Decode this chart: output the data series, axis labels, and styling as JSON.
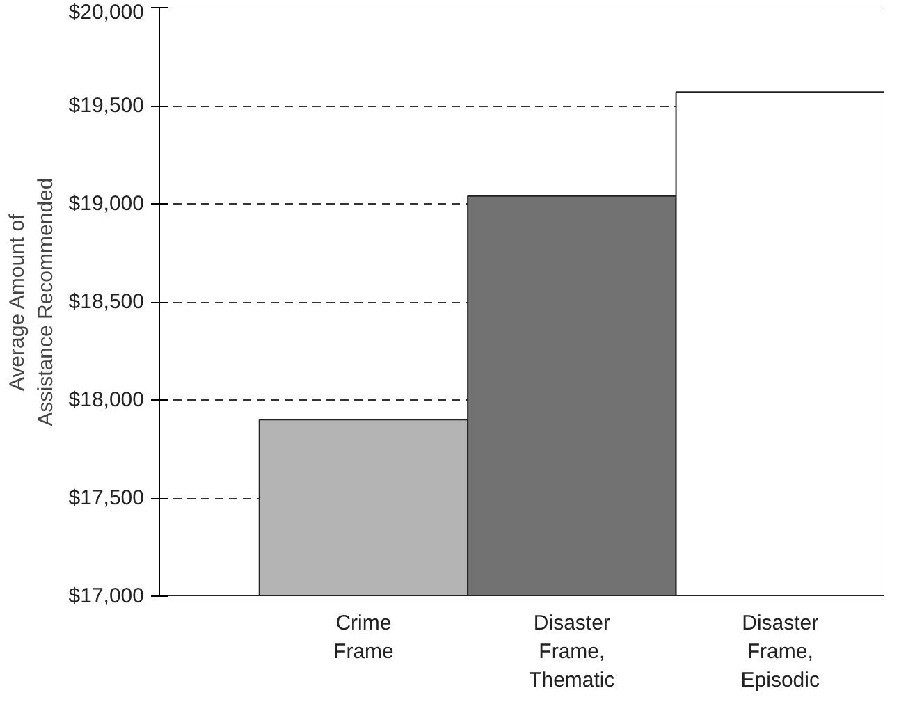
{
  "chart_data": {
    "type": "bar",
    "ylabel": "Average Amount of\nAssistance Recommended",
    "categories": [
      "Crime Frame",
      "Disaster Frame, Thematic",
      "Disaster Frame, Episodic"
    ],
    "values": [
      17900,
      19040,
      19570
    ],
    "colors": [
      "#b4b4b4",
      "#727272",
      "#ffffff"
    ],
    "ylim": [
      17000,
      20000
    ],
    "yticks": [
      {
        "value": 17000,
        "label": "$17,000"
      },
      {
        "value": 17500,
        "label": "$17,500"
      },
      {
        "value": 18000,
        "label": "$18,000"
      },
      {
        "value": 18500,
        "label": "$18,500"
      },
      {
        "value": 19000,
        "label": "$19,000"
      },
      {
        "value": 19500,
        "label": "$19,500"
      },
      {
        "value": 20000,
        "label": "$20,000"
      }
    ],
    "grid": "y"
  }
}
